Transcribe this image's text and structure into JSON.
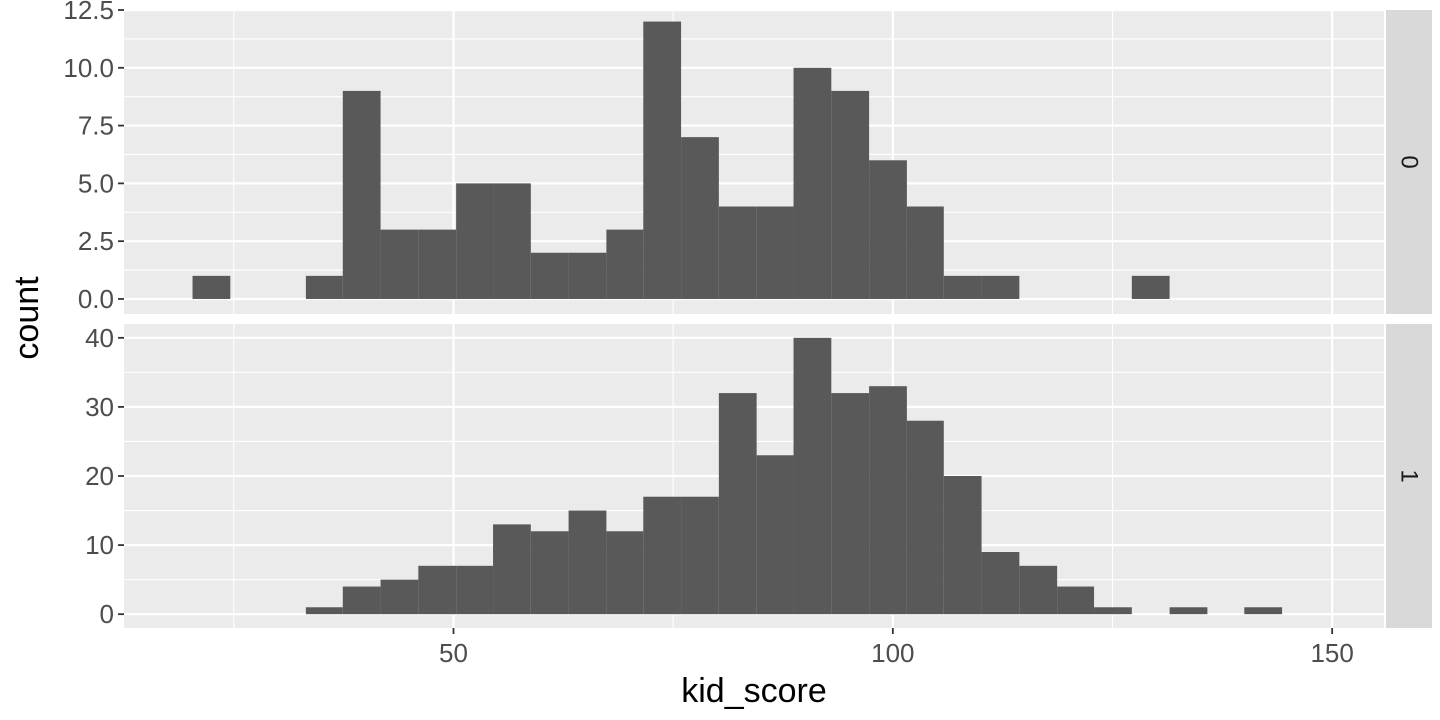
{
  "chart_data": {
    "type": "bar",
    "subtype": "faceted-histogram",
    "title": "",
    "xlabel": "kid_score",
    "ylabel": "count",
    "xlim": [
      12.5,
      155.9
    ],
    "x_ticks": [
      50,
      100,
      150
    ],
    "x_tick_labels": [
      "50",
      "100",
      "150"
    ],
    "bin_edges": [
      20.3,
      24.6,
      28.9,
      33.2,
      37.4,
      41.7,
      46.0,
      50.3,
      54.5,
      58.8,
      63.1,
      67.4,
      71.6,
      75.9,
      80.2,
      84.5,
      88.7,
      93.0,
      97.3,
      101.6,
      105.8,
      110.1,
      114.4,
      118.7,
      122.9,
      127.2,
      131.5,
      135.8,
      140.0,
      144.3,
      148.6
    ],
    "grid": true,
    "legend": "none",
    "colors": {
      "bar": "#595959",
      "panel": "#ebebeb",
      "grid": "#ffffff",
      "strip": "#d9d9d9"
    },
    "facets": [
      {
        "strip_label": "0",
        "ylim": [
          -0.65,
          12.5
        ],
        "y_ticks": [
          0,
          2.5,
          5,
          7.5,
          10,
          12.5
        ],
        "y_tick_labels": [
          "0.0",
          "2.5",
          "5.0",
          "7.5",
          "10.0",
          "12.5"
        ],
        "counts": [
          1,
          0,
          0,
          1,
          9,
          3,
          3,
          5,
          5,
          2,
          2,
          3,
          12,
          7,
          4,
          4,
          10,
          9,
          6,
          4,
          1,
          1,
          0,
          0,
          0,
          1,
          0,
          0,
          0,
          0
        ]
      },
      {
        "strip_label": "1",
        "ylim": [
          -2,
          42
        ],
        "y_ticks": [
          0,
          10,
          20,
          30,
          40
        ],
        "y_tick_labels": [
          "0",
          "10",
          "20",
          "30",
          "40"
        ],
        "counts": [
          0,
          0,
          0,
          1,
          4,
          5,
          7,
          7,
          13,
          12,
          15,
          12,
          17,
          17,
          32,
          23,
          40,
          32,
          33,
          28,
          20,
          9,
          7,
          4,
          1,
          0,
          1,
          0,
          1,
          0
        ]
      }
    ]
  }
}
